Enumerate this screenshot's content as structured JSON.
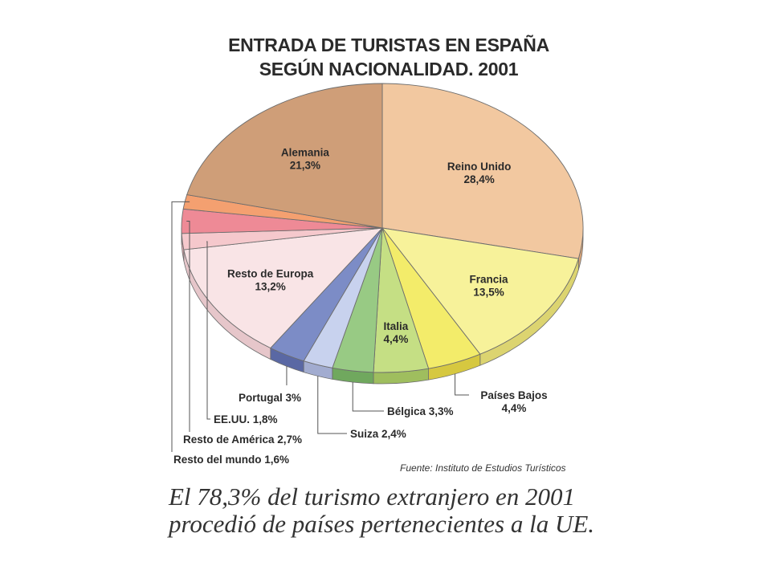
{
  "chart_data": {
    "type": "pie",
    "title": "ENTRADA DE TURISTAS EN ESPAÑA",
    "subtitle": "SEGÚN NACIONALIDAD. 2001",
    "slices": [
      {
        "name": "Reino Unido",
        "value": 28.4,
        "value_label": "28,4%",
        "color": "#f2c8a0",
        "side_color": "#d8a478"
      },
      {
        "name": "Francia",
        "value": 13.5,
        "value_label": "13,5%",
        "color": "#f7f29a",
        "side_color": "#dcd470"
      },
      {
        "name": "Países Bajos",
        "value": 4.4,
        "value_label": "4,4%",
        "color": "#f3ec6a",
        "side_color": "#d6c840"
      },
      {
        "name": "Italia",
        "value": 4.4,
        "value_label": "4,4%",
        "color": "#c5df84",
        "side_color": "#9fbe5e"
      },
      {
        "name": "Bélgica",
        "value": 3.3,
        "value_label": "3,3%",
        "color": "#98ca84",
        "side_color": "#70a85e"
      },
      {
        "name": "Suiza",
        "value": 2.4,
        "value_label": "2,4%",
        "color": "#c8d2ee",
        "side_color": "#a2acd0"
      },
      {
        "name": "Portugal",
        "value": 3.0,
        "value_label": "3%",
        "color": "#7c8cc6",
        "side_color": "#5a68a4"
      },
      {
        "name": "Resto de Europa",
        "value": 13.2,
        "value_label": "13,2%",
        "color": "#f9e4e6",
        "side_color": "#e6c6ca"
      },
      {
        "name": "EE.UU.",
        "value": 1.8,
        "value_label": "1,8%",
        "color": "#f5c8cc",
        "side_color": "#dea6ac"
      },
      {
        "name": "Resto de América",
        "value": 2.7,
        "value_label": "2,7%",
        "color": "#ee8a96",
        "side_color": "#d26a76"
      },
      {
        "name": "Resto del mundo",
        "value": 1.6,
        "value_label": "1,6%",
        "color": "#f4a070",
        "side_color": "#d8804e"
      },
      {
        "name": "Alemania",
        "value": 21.3,
        "value_label": "21,3%",
        "color": "#cf9e78",
        "side_color": "#b27e58"
      }
    ],
    "external_labels": {
      "Países Bajos": "Países Bajos",
      "Bélgica": "Bélgica 3,3%",
      "Suiza": "Suiza 2,4%",
      "Portugal": "Portugal 3%",
      "EE.UU.": "EE.UU. 1,8%",
      "Resto de América": "Resto de América 2,7%",
      "Resto del mundo": "Resto del mundo 1,6%"
    },
    "source": "Fuente: Instituto de Estudios Turísticos"
  },
  "caption": {
    "line1": "El 78,3% del turismo extranjero en 2001",
    "line2": "procedió de países pertenecientes a la UE."
  }
}
